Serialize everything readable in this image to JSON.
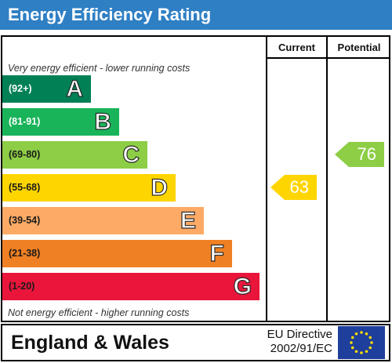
{
  "title": "Energy Efficiency Rating",
  "columns": {
    "current": "Current",
    "potential": "Potential"
  },
  "notes": {
    "top": "Very energy efficient - lower running costs",
    "bottom": "Not energy efficient - higher running costs"
  },
  "bands": [
    {
      "range": "(92+)",
      "letter": "A",
      "color": "#008054",
      "range_color": "#ffffff"
    },
    {
      "range": "(81-91)",
      "letter": "B",
      "color": "#19b459",
      "range_color": "#ffffff"
    },
    {
      "range": "(69-80)",
      "letter": "C",
      "color": "#8dce46",
      "range_color": "#1a1a1a"
    },
    {
      "range": "(55-68)",
      "letter": "D",
      "color": "#ffd500",
      "range_color": "#1a1a1a"
    },
    {
      "range": "(39-54)",
      "letter": "E",
      "color": "#fcaa65",
      "range_color": "#1a1a1a"
    },
    {
      "range": "(21-38)",
      "letter": "F",
      "color": "#ef8023",
      "range_color": "#1a1a1a"
    },
    {
      "range": "(1-20)",
      "letter": "G",
      "color": "#e9153b",
      "range_color": "#1a1a1a"
    }
  ],
  "current": {
    "value": "63",
    "band": "D",
    "color": "#ffd500"
  },
  "potential": {
    "value": "76",
    "band": "C",
    "color": "#8dce46"
  },
  "footer": {
    "region": "England & Wales",
    "directive_line1": "EU Directive",
    "directive_line2": "2002/91/EC",
    "flag_icon": "eu-flag-icon"
  }
}
